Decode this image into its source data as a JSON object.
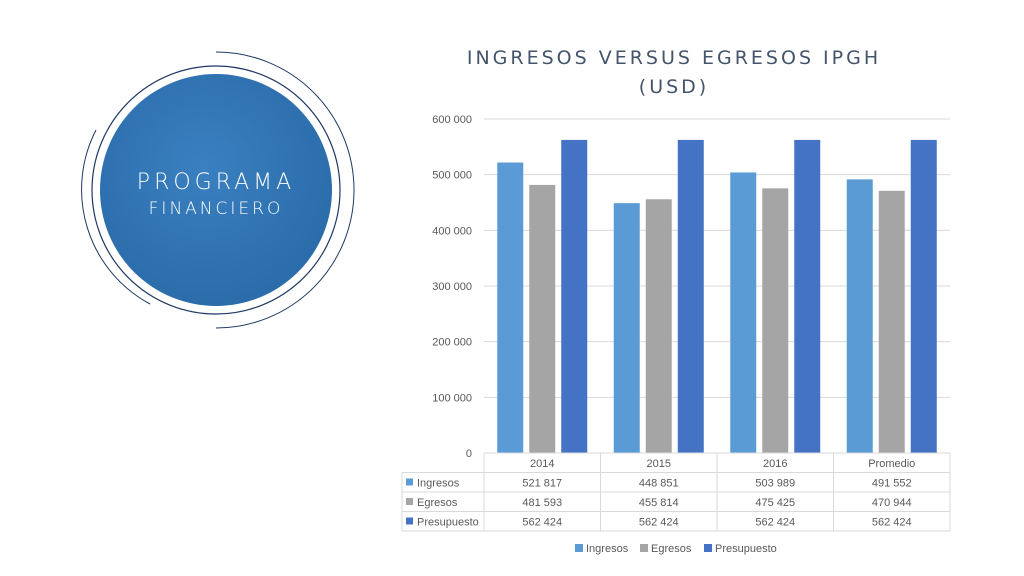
{
  "slide": {
    "heading_line1": "PROGRAMA",
    "heading_line2": "FINANCIERO",
    "circle_color": "#2e75b6",
    "ring_color": "#1f3864"
  },
  "chart_data": {
    "type": "bar",
    "title_line1": "INGRESOS VERSUS EGRESOS IPGH",
    "title_line2": "(USD)",
    "categories": [
      "2014",
      "2015",
      "2016",
      "Promedio"
    ],
    "series": [
      {
        "name": "Ingresos",
        "values": [
          521817,
          448851,
          503989,
          491552
        ],
        "labels": [
          "521 817",
          "448 851",
          "503 989",
          "491 552"
        ],
        "color": "#5b9bd5"
      },
      {
        "name": "Egresos",
        "values": [
          481593,
          455814,
          475425,
          470944
        ],
        "labels": [
          "481 593",
          "455 814",
          "475 425",
          "470 944"
        ],
        "color": "#a5a5a5"
      },
      {
        "name": "Presupuesto",
        "values": [
          562424,
          562424,
          562424,
          562424
        ],
        "labels": [
          "562 424",
          "562 424",
          "562 424",
          "562 424"
        ],
        "color": "#4472c4"
      }
    ],
    "ylim": [
      0,
      600000
    ],
    "yticks": [
      0,
      100000,
      200000,
      300000,
      400000,
      500000,
      600000
    ],
    "ytick_labels": [
      "0",
      "100 000",
      "200 000",
      "300 000",
      "400 000",
      "500 000",
      "600 000"
    ],
    "grid": true,
    "data_table": true,
    "legend_position": "bottom"
  }
}
